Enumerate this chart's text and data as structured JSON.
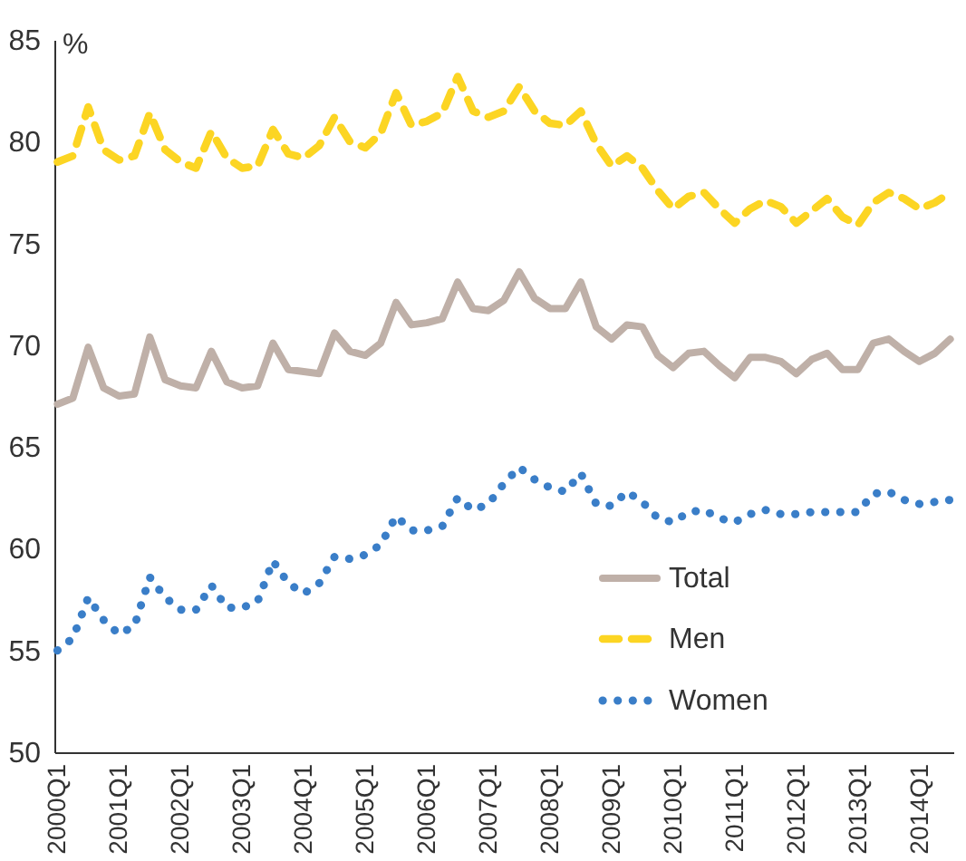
{
  "chart_data": {
    "type": "line",
    "ylabel": "%",
    "categories": [
      "2000Q1",
      null,
      null,
      null,
      "2001Q1",
      null,
      null,
      null,
      "2002Q1",
      null,
      null,
      null,
      "2003Q1",
      null,
      null,
      null,
      "2004Q1",
      null,
      null,
      null,
      "2005Q1",
      null,
      null,
      null,
      "2006Q1",
      null,
      null,
      null,
      "2007Q1",
      null,
      null,
      null,
      "2008Q1",
      null,
      null,
      null,
      "2009Q1",
      null,
      null,
      null,
      "2010Q1",
      null,
      null,
      null,
      "2011Q1",
      null,
      null,
      null,
      "2012Q1",
      null,
      null,
      null,
      "2013Q1",
      null,
      null,
      null,
      "2014Q1",
      null,
      null
    ],
    "ylim": [
      50,
      85
    ],
    "yticks": [
      50,
      55,
      60,
      65,
      70,
      75,
      80,
      85
    ],
    "grid": false,
    "legend": "bottom right",
    "series": [
      {
        "name": "Total",
        "color": "#bfb0a8",
        "line_style": "solid",
        "values": [
          67.1,
          67.4,
          69.9,
          67.9,
          67.5,
          67.6,
          70.4,
          68.3,
          68.0,
          67.9,
          69.7,
          68.2,
          67.9,
          68.0,
          70.1,
          68.8,
          68.7,
          68.6,
          70.6,
          69.7,
          69.5,
          70.1,
          72.1,
          71.0,
          71.1,
          71.3,
          73.1,
          71.8,
          71.7,
          72.2,
          73.6,
          72.3,
          71.8,
          71.8,
          73.1,
          70.9,
          70.3,
          71.0,
          70.9,
          69.5,
          68.9,
          69.6,
          69.7,
          69.0,
          68.4,
          69.4,
          69.4,
          69.2,
          68.6,
          69.3,
          69.6,
          68.8,
          68.8,
          70.1,
          70.3,
          69.7,
          69.2,
          69.6,
          70.3
        ]
      },
      {
        "name": "Men",
        "color": "#fcd523",
        "line_style": "dashed",
        "values": [
          79.0,
          79.3,
          81.7,
          79.6,
          79.1,
          79.3,
          81.4,
          79.6,
          79.0,
          78.7,
          80.5,
          79.2,
          78.7,
          78.8,
          80.6,
          79.4,
          79.2,
          79.8,
          81.2,
          80.0,
          79.7,
          80.4,
          82.4,
          80.8,
          81.0,
          81.4,
          83.2,
          81.5,
          81.2,
          81.5,
          82.7,
          81.5,
          80.9,
          80.8,
          81.5,
          79.9,
          78.8,
          79.3,
          78.7,
          77.6,
          76.7,
          77.3,
          77.5,
          76.7,
          76.0,
          76.7,
          77.1,
          76.8,
          76.0,
          76.6,
          77.2,
          76.3,
          75.9,
          77.0,
          77.5,
          77.2,
          76.7,
          77.0,
          77.5
        ]
      },
      {
        "name": "Women",
        "color": "#3a7ec8",
        "line_style": "dotted",
        "values": [
          55.0,
          55.6,
          57.6,
          56.5,
          55.8,
          56.2,
          58.6,
          57.6,
          57.0,
          57.0,
          58.2,
          57.1,
          57.1,
          57.4,
          59.4,
          58.3,
          57.8,
          58.3,
          59.6,
          59.5,
          59.7,
          60.2,
          61.6,
          60.9,
          60.9,
          61.1,
          62.5,
          61.9,
          62.2,
          63.2,
          64.0,
          63.4,
          63.0,
          62.8,
          63.7,
          62.2,
          62.1,
          62.8,
          62.3,
          61.5,
          61.3,
          61.8,
          61.9,
          61.5,
          61.3,
          61.7,
          61.9,
          61.7,
          61.7,
          61.8,
          61.8,
          61.8,
          61.8,
          62.7,
          62.8,
          62.4,
          62.2,
          62.3,
          62.4
        ]
      }
    ]
  }
}
